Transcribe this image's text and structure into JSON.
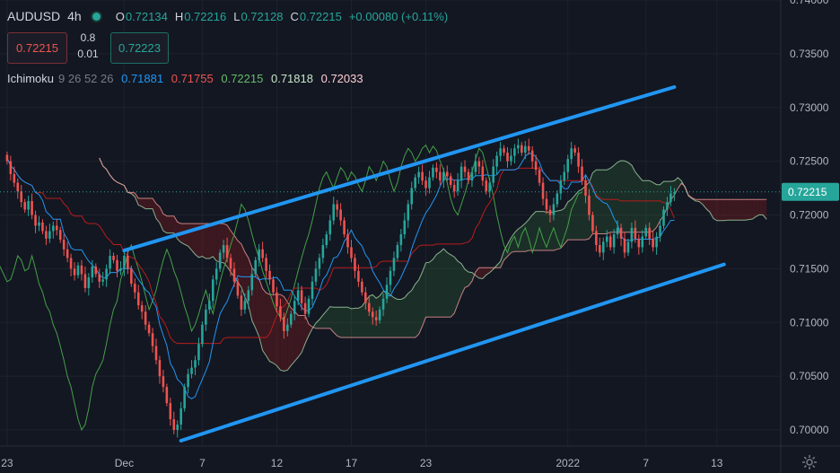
{
  "header": {
    "symbol": "AUDUSD",
    "timeframe": "4h",
    "o_label": "O",
    "o_value": "0.72134",
    "h_label": "H",
    "h_value": "0.72216",
    "l_label": "L",
    "l_value": "0.72128",
    "c_label": "C",
    "c_value": "0.72215",
    "change": "+0.00080 (+0.11%)"
  },
  "trade": {
    "sell_price": "0.72215",
    "spread_top": "0.8",
    "spread_bottom": "0.01",
    "buy_price": "0.72223"
  },
  "indicator": {
    "name": "Ichimoku",
    "params": "9 26 52 26",
    "values": [
      "0.71881",
      "0.71755",
      "0.72215",
      "0.71818",
      "0.72033"
    ]
  },
  "colors": {
    "background": "#131722",
    "up": "#26a69a",
    "down": "#ef5350",
    "conversion": "#2196f3",
    "base": "#b71c1c",
    "lagging": "#43a047",
    "spanA": "#a5d6a7",
    "spanB": "#ef9a9a",
    "channel": "#2196f3",
    "price_tag": "#26a69a"
  },
  "chart_data": {
    "type": "candlestick",
    "symbol": "AUDUSD",
    "interval": "4h",
    "ylim": [
      0.6985,
      0.74
    ],
    "y_ticks": [
      "0.74000",
      "0.73500",
      "0.73000",
      "0.72500",
      "0.72000",
      "0.71500",
      "0.71000",
      "0.70500",
      "0.70000"
    ],
    "y_tick_values": [
      0.74,
      0.735,
      0.73,
      0.725,
      0.72,
      0.715,
      0.71,
      0.705,
      0.7
    ],
    "x_ticks": [
      "23",
      "Dec",
      "7",
      "12",
      "17",
      "23",
      "2022",
      "7",
      "13"
    ],
    "x_tick_bars": [
      0,
      33,
      55,
      76,
      97,
      118,
      158,
      180,
      200
    ],
    "x_range_bars": [
      -2,
      218
    ],
    "current_price": 0.72215,
    "current_price_label": "0.72215",
    "channel_upper": [
      [
        33,
        0.7167
      ],
      [
        188,
        0.7319
      ]
    ],
    "channel_lower": [
      [
        49,
        0.699
      ],
      [
        202,
        0.7154
      ]
    ],
    "close": [
      0.725,
      0.7238,
      0.723,
      0.7222,
      0.7212,
      0.7205,
      0.7213,
      0.72,
      0.719,
      0.7193,
      0.7185,
      0.7178,
      0.7185,
      0.719,
      0.7186,
      0.7177,
      0.7168,
      0.716,
      0.715,
      0.7144,
      0.7153,
      0.7145,
      0.7132,
      0.7142,
      0.7152,
      0.7145,
      0.7138,
      0.714,
      0.715,
      0.7162,
      0.7158,
      0.7148,
      0.715,
      0.7162,
      0.715,
      0.7136,
      0.7128,
      0.7116,
      0.711,
      0.7098,
      0.709,
      0.7078,
      0.7065,
      0.705,
      0.704,
      0.7025,
      0.701,
      0.7,
      0.7005,
      0.702,
      0.704,
      0.7052,
      0.7058,
      0.7065,
      0.708,
      0.7098,
      0.7112,
      0.712,
      0.714,
      0.715,
      0.7165,
      0.7172,
      0.716,
      0.715,
      0.7138,
      0.7125,
      0.7112,
      0.712,
      0.713,
      0.7145,
      0.7158,
      0.7168,
      0.716,
      0.7148,
      0.714,
      0.7128,
      0.7115,
      0.7105,
      0.7092,
      0.7098,
      0.7108,
      0.712,
      0.713,
      0.7118,
      0.7108,
      0.7122,
      0.7138,
      0.715,
      0.716,
      0.7172,
      0.7182,
      0.7195,
      0.721,
      0.7205,
      0.7195,
      0.7182,
      0.717,
      0.716,
      0.7148,
      0.7138,
      0.7128,
      0.7118,
      0.711,
      0.7105,
      0.7102,
      0.7112,
      0.7122,
      0.7135,
      0.7148,
      0.716,
      0.7172,
      0.7182,
      0.7195,
      0.721,
      0.7225,
      0.7235,
      0.724,
      0.7232,
      0.7225,
      0.7235,
      0.7244,
      0.724,
      0.7232,
      0.724,
      0.7236,
      0.7228,
      0.7222,
      0.7232,
      0.7245,
      0.724,
      0.7232,
      0.724,
      0.725,
      0.7245,
      0.7232,
      0.7222,
      0.723,
      0.7245,
      0.7255,
      0.7262,
      0.7258,
      0.725,
      0.7255,
      0.7262,
      0.7265,
      0.7258,
      0.7264,
      0.726,
      0.725,
      0.7242,
      0.723,
      0.7215,
      0.7205,
      0.72,
      0.721,
      0.722,
      0.7232,
      0.724,
      0.7252,
      0.7262,
      0.7258,
      0.7245,
      0.7232,
      0.7218,
      0.72,
      0.7185,
      0.7172,
      0.7165,
      0.7175,
      0.718,
      0.717,
      0.7182,
      0.7188,
      0.7178,
      0.7165,
      0.7175,
      0.7188,
      0.7178,
      0.717,
      0.718,
      0.7188,
      0.7178,
      0.717,
      0.718,
      0.719,
      0.7205,
      0.7212,
      0.722,
      0.7221
    ]
  }
}
